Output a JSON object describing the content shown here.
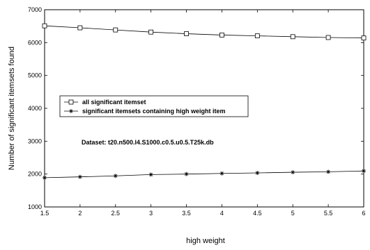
{
  "chart_data": {
    "type": "line",
    "title": "",
    "xlabel": "high weight",
    "ylabel": "Number of significant itemsets found",
    "xlim": [
      1.5,
      6
    ],
    "ylim": [
      1000,
      7000
    ],
    "x_ticks": [
      "1.5",
      "2",
      "2.5",
      "3",
      "3.5",
      "4",
      "4.5",
      "5",
      "5.5",
      "6"
    ],
    "y_ticks": [
      "1000",
      "2000",
      "3000",
      "4000",
      "5000",
      "6000",
      "7000"
    ],
    "grid": false,
    "legend_position": "center-left",
    "x": [
      1.5,
      2,
      2.5,
      3,
      3.5,
      4,
      4.5,
      5,
      5.5,
      6
    ],
    "series": [
      {
        "name": "all significant itemset",
        "marker": "square",
        "values": [
          6510,
          6450,
          6385,
          6320,
          6270,
          6230,
          6205,
          6180,
          6155,
          6140
        ]
      },
      {
        "name": "significant itemsets containing high weight item",
        "marker": "star",
        "values": [
          1890,
          1915,
          1945,
          1985,
          2000,
          2020,
          2035,
          2055,
          2070,
          2095
        ]
      }
    ],
    "annotation": "Dataset: t20.n500.l4.S1000.c0.5.u0.5.T25k.db"
  }
}
